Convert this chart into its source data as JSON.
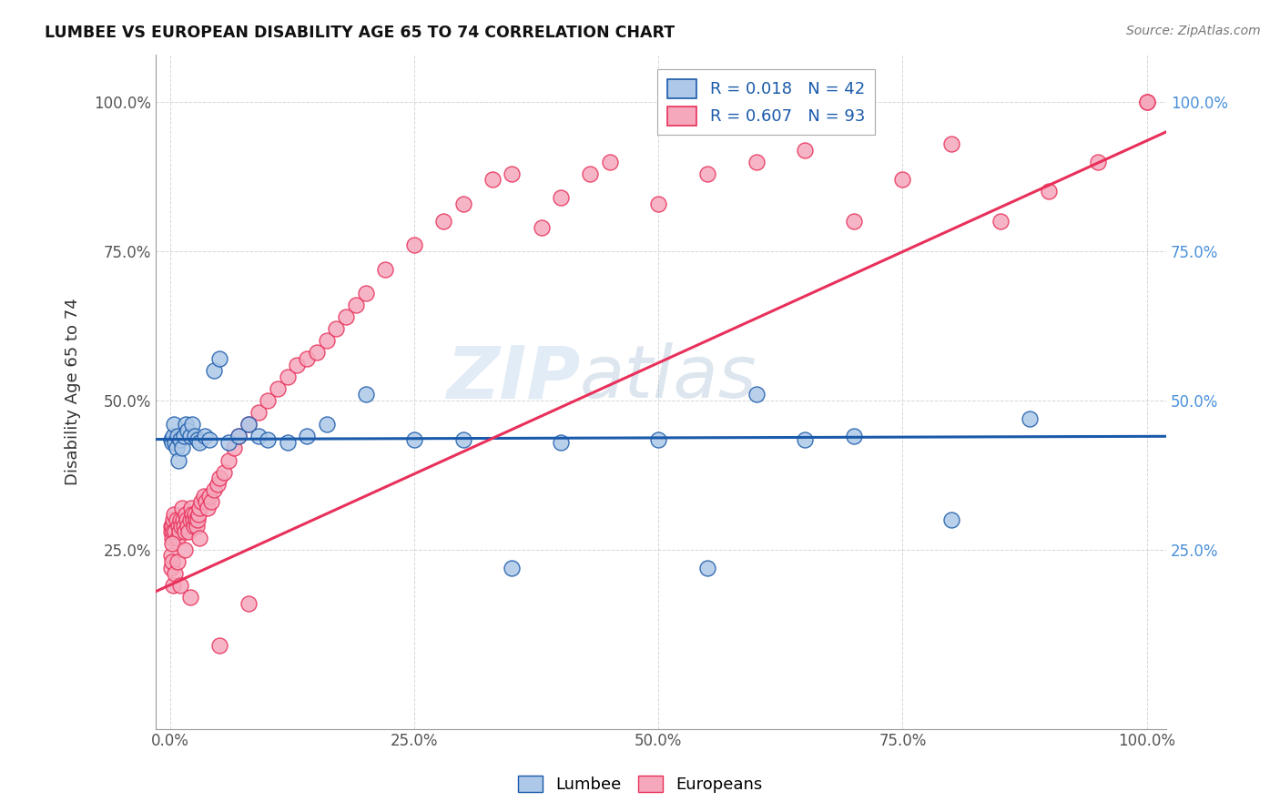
{
  "title": "LUMBEE VS EUROPEAN DISABILITY AGE 65 TO 74 CORRELATION CHART",
  "source": "Source: ZipAtlas.com",
  "ylabel": "Disability Age 65 to 74",
  "xlabel": "",
  "watermark_zip": "ZIP",
  "watermark_atlas": "atlas",
  "legend_lumbee": "R = 0.018   N = 42",
  "legend_european": "R = 0.607   N = 93",
  "lumbee_color": "#adc8e8",
  "european_color": "#f5a8bc",
  "lumbee_line_color": "#1a5aaa",
  "european_line_color": "#e8305a",
  "background_color": "#ffffff",
  "grid_color": "#cccccc",
  "lumbee_x": [
    0.001,
    0.002,
    0.003,
    0.004,
    0.005,
    0.006,
    0.007,
    0.008,
    0.01,
    0.012,
    0.014,
    0.016,
    0.018,
    0.02,
    0.022,
    0.025,
    0.028,
    0.03,
    0.035,
    0.04,
    0.045,
    0.05,
    0.06,
    0.07,
    0.08,
    0.09,
    0.1,
    0.12,
    0.14,
    0.16,
    0.2,
    0.25,
    0.3,
    0.35,
    0.4,
    0.5,
    0.55,
    0.6,
    0.65,
    0.7,
    0.8,
    0.88
  ],
  "lumbee_y": [
    0.435,
    0.43,
    0.44,
    0.46,
    0.43,
    0.42,
    0.44,
    0.4,
    0.435,
    0.42,
    0.44,
    0.46,
    0.45,
    0.44,
    0.46,
    0.44,
    0.435,
    0.43,
    0.44,
    0.435,
    0.55,
    0.57,
    0.43,
    0.44,
    0.46,
    0.44,
    0.435,
    0.43,
    0.44,
    0.46,
    0.51,
    0.435,
    0.435,
    0.22,
    0.43,
    0.435,
    0.22,
    0.51,
    0.435,
    0.44,
    0.3,
    0.47
  ],
  "european_x": [
    0.0005,
    0.001,
    0.0015,
    0.002,
    0.0025,
    0.003,
    0.004,
    0.005,
    0.006,
    0.007,
    0.008,
    0.009,
    0.01,
    0.011,
    0.012,
    0.013,
    0.014,
    0.015,
    0.016,
    0.017,
    0.018,
    0.019,
    0.02,
    0.021,
    0.022,
    0.023,
    0.024,
    0.025,
    0.026,
    0.027,
    0.028,
    0.029,
    0.03,
    0.032,
    0.034,
    0.036,
    0.038,
    0.04,
    0.042,
    0.045,
    0.048,
    0.05,
    0.055,
    0.06,
    0.065,
    0.07,
    0.08,
    0.09,
    0.1,
    0.11,
    0.12,
    0.13,
    0.14,
    0.15,
    0.16,
    0.17,
    0.18,
    0.19,
    0.2,
    0.22,
    0.25,
    0.28,
    0.3,
    0.33,
    0.35,
    0.38,
    0.4,
    0.43,
    0.45,
    0.5,
    0.55,
    0.6,
    0.65,
    0.7,
    0.75,
    0.8,
    0.85,
    0.9,
    0.95,
    1.0,
    0.0005,
    0.001,
    0.0015,
    0.002,
    0.003,
    0.005,
    0.007,
    0.01,
    0.015,
    0.02,
    0.03,
    0.05,
    0.08,
    1.0
  ],
  "european_y": [
    0.29,
    0.28,
    0.27,
    0.29,
    0.3,
    0.28,
    0.31,
    0.28,
    0.3,
    0.27,
    0.29,
    0.28,
    0.3,
    0.29,
    0.32,
    0.3,
    0.29,
    0.28,
    0.31,
    0.3,
    0.29,
    0.28,
    0.3,
    0.32,
    0.31,
    0.3,
    0.29,
    0.31,
    0.3,
    0.29,
    0.3,
    0.31,
    0.32,
    0.33,
    0.34,
    0.33,
    0.32,
    0.34,
    0.33,
    0.35,
    0.36,
    0.37,
    0.38,
    0.4,
    0.42,
    0.44,
    0.46,
    0.48,
    0.5,
    0.52,
    0.54,
    0.56,
    0.57,
    0.58,
    0.6,
    0.62,
    0.64,
    0.66,
    0.68,
    0.72,
    0.76,
    0.8,
    0.83,
    0.87,
    0.88,
    0.79,
    0.84,
    0.88,
    0.9,
    0.83,
    0.88,
    0.9,
    0.92,
    0.8,
    0.87,
    0.93,
    0.8,
    0.85,
    0.9,
    1.0,
    0.22,
    0.24,
    0.26,
    0.23,
    0.19,
    0.21,
    0.23,
    0.19,
    0.25,
    0.17,
    0.27,
    0.09,
    0.16,
    1.0
  ],
  "xlim": [
    -0.015,
    1.02
  ],
  "ylim": [
    -0.05,
    1.08
  ],
  "xticks": [
    0.0,
    0.25,
    0.5,
    0.75,
    1.0
  ],
  "yticks": [
    0.25,
    0.5,
    0.75,
    1.0
  ],
  "lumbee_line_y0": 0.435,
  "lumbee_line_y1": 0.44,
  "european_line_x0": -0.015,
  "european_line_x1": 1.02,
  "european_line_y0": 0.18,
  "european_line_y1": 0.95
}
